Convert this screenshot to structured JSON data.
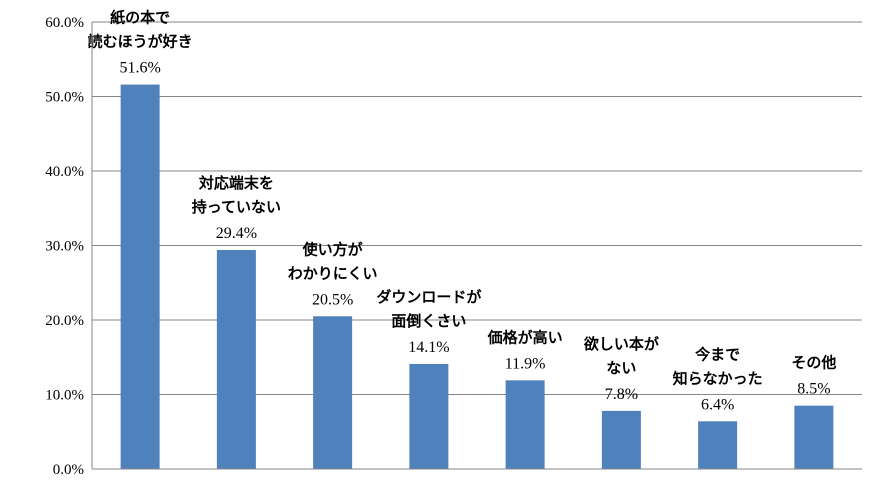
{
  "chart_data": {
    "type": "bar",
    "title": "",
    "xlabel": "",
    "ylabel": "",
    "ylim": [
      0,
      60
    ],
    "y_ticks": [
      "0.0%",
      "10.0%",
      "20.0%",
      "30.0%",
      "40.0%",
      "50.0%",
      "60.0%"
    ],
    "grid": true,
    "bar_color": "#4f81bd",
    "categories": [
      [
        "紙の本で",
        "読むほうが好き"
      ],
      [
        "対応端末を",
        "持っていない"
      ],
      [
        "使い方が",
        "わかりにくい"
      ],
      [
        "ダウンロードが",
        "面倒くさい"
      ],
      [
        "価格が高い"
      ],
      [
        "欲しい本が",
        "ない"
      ],
      [
        "今まで",
        "知らなかった"
      ],
      [
        "その他"
      ]
    ],
    "values": [
      51.6,
      29.4,
      20.5,
      14.1,
      11.9,
      7.8,
      6.4,
      8.5
    ],
    "value_labels": [
      "51.6%",
      "29.4%",
      "20.5%",
      "14.1%",
      "11.9%",
      "7.8%",
      "6.4%",
      "8.5%"
    ]
  }
}
